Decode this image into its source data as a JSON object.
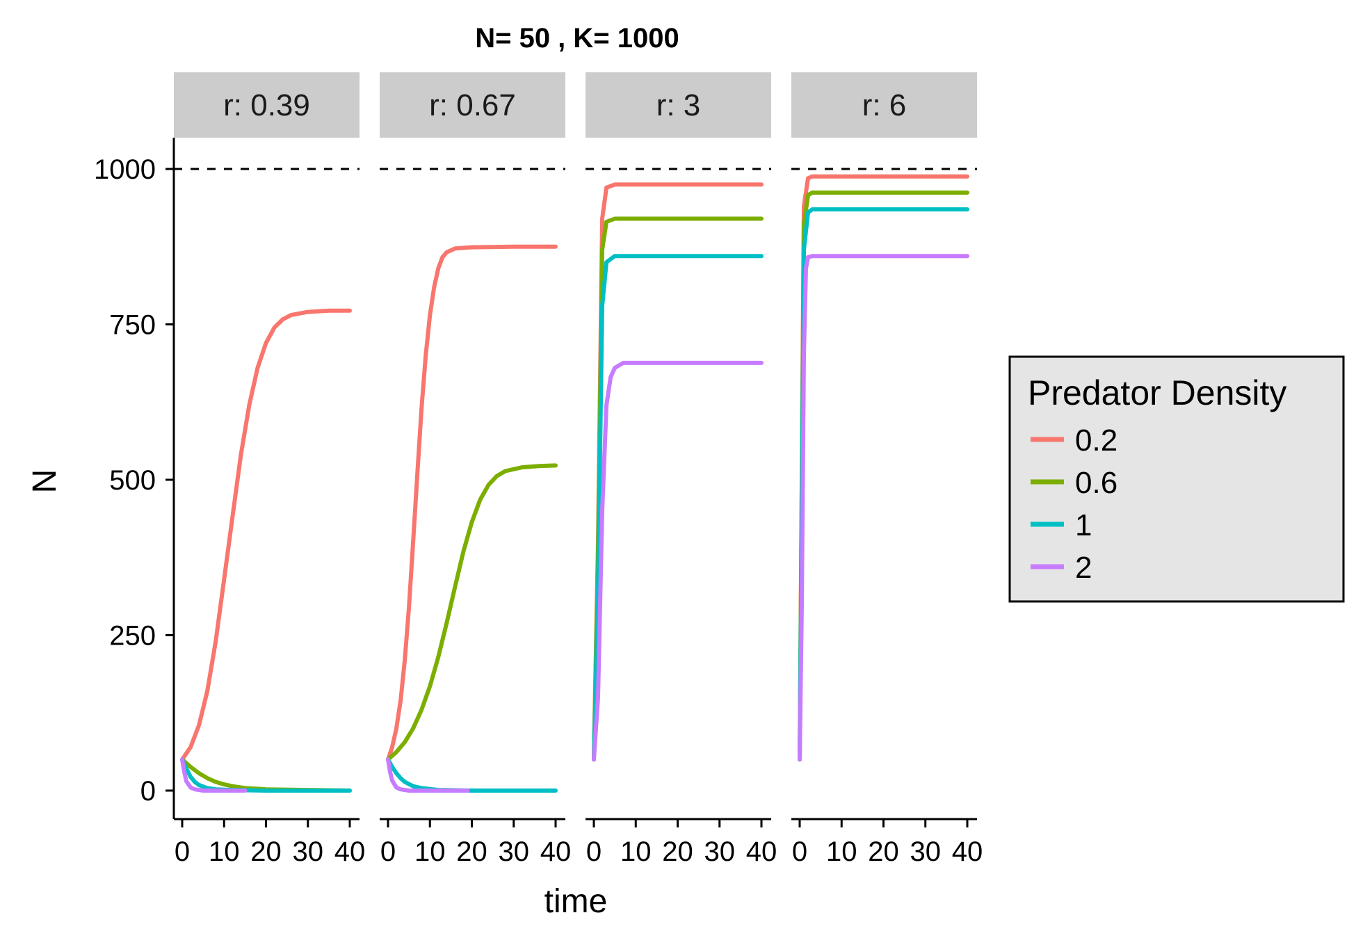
{
  "chart_data": {
    "type": "line",
    "title": "N= 50 , K= 1000",
    "xlabel": "time",
    "ylabel": "N",
    "x_ticks": [
      "0",
      "10",
      "20",
      "30",
      "40"
    ],
    "y_ticks": [
      "0",
      "250",
      "500",
      "750",
      "1000"
    ],
    "xlim": [
      0,
      40
    ],
    "ylim": [
      0,
      1000
    ],
    "reference_line": {
      "y": 1000,
      "style": "dashed"
    },
    "legend": {
      "title": "Predator Density",
      "placement": "right",
      "entries": [
        {
          "label": "0.2",
          "color": "#F8766D"
        },
        {
          "label": "0.6",
          "color": "#7CAE00"
        },
        {
          "label": "1",
          "color": "#00BFC4"
        },
        {
          "label": "2",
          "color": "#C77CFF"
        }
      ]
    },
    "facets": [
      {
        "strip": "r: 0.39",
        "series": [
          {
            "name": "0.2",
            "points": [
              [
                0,
                50
              ],
              [
                2,
                70
              ],
              [
                4,
                105
              ],
              [
                6,
                160
              ],
              [
                8,
                240
              ],
              [
                10,
                340
              ],
              [
                12,
                440
              ],
              [
                14,
                540
              ],
              [
                16,
                620
              ],
              [
                18,
                680
              ],
              [
                20,
                720
              ],
              [
                22,
                745
              ],
              [
                24,
                758
              ],
              [
                26,
                765
              ],
              [
                30,
                770
              ],
              [
                35,
                772
              ],
              [
                40,
                772
              ]
            ]
          },
          {
            "name": "0.6",
            "points": [
              [
                0,
                50
              ],
              [
                2,
                38
              ],
              [
                4,
                28
              ],
              [
                6,
                20
              ],
              [
                8,
                14
              ],
              [
                10,
                10
              ],
              [
                12,
                7
              ],
              [
                15,
                4
              ],
              [
                20,
                2
              ],
              [
                30,
                1
              ],
              [
                40,
                0
              ]
            ]
          },
          {
            "name": "1",
            "points": [
              [
                0,
                50
              ],
              [
                1,
                35
              ],
              [
                2,
                22
              ],
              [
                3,
                14
              ],
              [
                4,
                9
              ],
              [
                6,
                4
              ],
              [
                8,
                2
              ],
              [
                12,
                1
              ],
              [
                20,
                0
              ],
              [
                40,
                0
              ]
            ]
          },
          {
            "name": "2",
            "points": [
              [
                0,
                50
              ],
              [
                0.5,
                30
              ],
              [
                1,
                15
              ],
              [
                2,
                5
              ],
              [
                3,
                2
              ],
              [
                5,
                0
              ],
              [
                15,
                0
              ]
            ]
          }
        ]
      },
      {
        "strip": "r: 0.67",
        "series": [
          {
            "name": "0.2",
            "points": [
              [
                0,
                50
              ],
              [
                1,
                70
              ],
              [
                2,
                100
              ],
              [
                3,
                145
              ],
              [
                4,
                210
              ],
              [
                5,
                295
              ],
              [
                6,
                400
              ],
              [
                7,
                510
              ],
              [
                8,
                615
              ],
              [
                9,
                700
              ],
              [
                10,
                765
              ],
              [
                11,
                810
              ],
              [
                12,
                840
              ],
              [
                13,
                858
              ],
              [
                14,
                866
              ],
              [
                16,
                872
              ],
              [
                20,
                874
              ],
              [
                30,
                875
              ],
              [
                40,
                875
              ]
            ]
          },
          {
            "name": "0.6",
            "points": [
              [
                0,
                50
              ],
              [
                2,
                62
              ],
              [
                4,
                78
              ],
              [
                6,
                100
              ],
              [
                8,
                130
              ],
              [
                10,
                168
              ],
              [
                12,
                215
              ],
              [
                14,
                270
              ],
              [
                16,
                328
              ],
              [
                18,
                385
              ],
              [
                20,
                432
              ],
              [
                22,
                468
              ],
              [
                24,
                492
              ],
              [
                26,
                506
              ],
              [
                28,
                514
              ],
              [
                32,
                520
              ],
              [
                36,
                522
              ],
              [
                40,
                523
              ]
            ]
          },
          {
            "name": "1",
            "points": [
              [
                0,
                50
              ],
              [
                1,
                38
              ],
              [
                2,
                28
              ],
              [
                3,
                20
              ],
              [
                4,
                14
              ],
              [
                6,
                7
              ],
              [
                8,
                4
              ],
              [
                12,
                1
              ],
              [
                20,
                0
              ],
              [
                40,
                0
              ]
            ]
          },
          {
            "name": "2",
            "points": [
              [
                0,
                50
              ],
              [
                0.5,
                30
              ],
              [
                1,
                16
              ],
              [
                2,
                5
              ],
              [
                3,
                2
              ],
              [
                5,
                0
              ],
              [
                19,
                0
              ]
            ]
          }
        ]
      },
      {
        "strip": "r: 3",
        "series": [
          {
            "name": "0.2",
            "points": [
              [
                0,
                50
              ],
              [
                1,
                400
              ],
              [
                2,
                920
              ],
              [
                3,
                970
              ],
              [
                5,
                975
              ],
              [
                40,
                975
              ]
            ]
          },
          {
            "name": "0.6",
            "points": [
              [
                0,
                50
              ],
              [
                1,
                380
              ],
              [
                2,
                870
              ],
              [
                3,
                915
              ],
              [
                5,
                920
              ],
              [
                40,
                920
              ]
            ]
          },
          {
            "name": "1",
            "points": [
              [
                0,
                50
              ],
              [
                1,
                320
              ],
              [
                2,
                780
              ],
              [
                3,
                850
              ],
              [
                5,
                860
              ],
              [
                40,
                860
              ]
            ]
          },
          {
            "name": "2",
            "points": [
              [
                0,
                50
              ],
              [
                1,
                150
              ],
              [
                2,
                450
              ],
              [
                3,
                620
              ],
              [
                4,
                665
              ],
              [
                5,
                680
              ],
              [
                7,
                688
              ],
              [
                40,
                688
              ]
            ]
          }
        ]
      },
      {
        "strip": "r: 6",
        "series": [
          {
            "name": "0.2",
            "points": [
              [
                0,
                50
              ],
              [
                0.5,
                500
              ],
              [
                1,
                940
              ],
              [
                2,
                985
              ],
              [
                3,
                988
              ],
              [
                40,
                988
              ]
            ]
          },
          {
            "name": "0.6",
            "points": [
              [
                0,
                50
              ],
              [
                0.5,
                480
              ],
              [
                1,
                910
              ],
              [
                2,
                958
              ],
              [
                3,
                962
              ],
              [
                40,
                962
              ]
            ]
          },
          {
            "name": "1",
            "points": [
              [
                0,
                50
              ],
              [
                0.5,
                430
              ],
              [
                1,
                870
              ],
              [
                2,
                930
              ],
              [
                3,
                935
              ],
              [
                40,
                935
              ]
            ]
          },
          {
            "name": "2",
            "points": [
              [
                0,
                50
              ],
              [
                0.5,
                300
              ],
              [
                1,
                700
              ],
              [
                1.5,
                840
              ],
              [
                2,
                858
              ],
              [
                3,
                860
              ],
              [
                40,
                860
              ]
            ]
          }
        ]
      }
    ]
  }
}
